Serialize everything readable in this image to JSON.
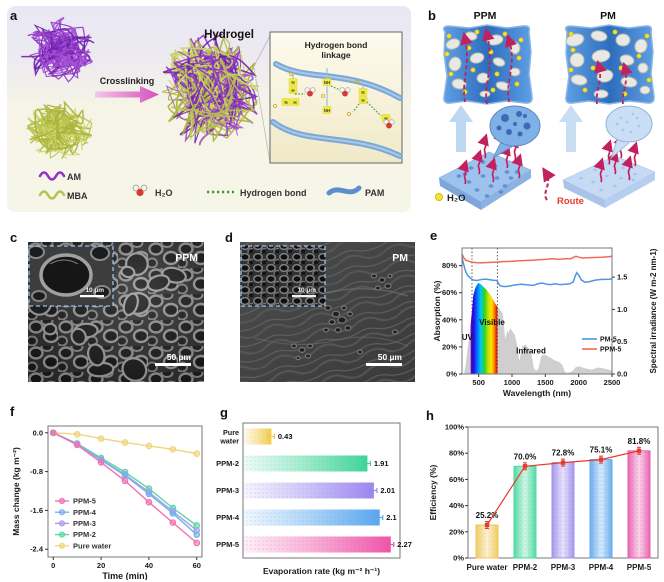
{
  "figure": {
    "panels": {
      "a": {
        "letter": "a",
        "hydrogel": "Hydrogel",
        "crosslinking": "Crosslinking",
        "inset_title_1": "Hydrogen bond",
        "inset_title_2": "linkage",
        "legend": {
          "am": "AM",
          "mba": "MBA",
          "h2o": "H₂O",
          "hbond": "Hydrogen bond",
          "pam": "PAM"
        }
      },
      "b": {
        "letter": "b",
        "left_title": "PPM",
        "right_title": "PM",
        "legend_water": "H₂O",
        "legend_route": "Route"
      },
      "c": {
        "letter": "c",
        "label": "PPM",
        "inset_scale": "10 µm",
        "scale": "50 µm"
      },
      "d": {
        "letter": "d",
        "label": "PM",
        "inset_scale": "10 µm",
        "scale": "50 µm"
      },
      "e": {
        "letter": "e"
      },
      "f": {
        "letter": "f"
      },
      "g": {
        "letter": "g"
      },
      "h": {
        "letter": "h"
      }
    }
  },
  "chart_data": [
    {
      "panel": "e",
      "type": "line",
      "xlabel": "Wavelength (nm)",
      "ylabel_left": "Absorption (%)",
      "ylabel_right": "Spectral irradiance (W m-2 nm-1)",
      "xlim": [
        250,
        2500
      ],
      "xticks": [
        500,
        1000,
        1500,
        2000,
        2500
      ],
      "ylim_left": [
        0,
        93
      ],
      "yticks_left": [
        {
          "v": 0,
          "label": "0%"
        },
        {
          "v": 20,
          "label": "20%"
        },
        {
          "v": 40,
          "label": "40%"
        },
        {
          "v": 60,
          "label": "60%"
        },
        {
          "v": 80,
          "label": "80%"
        }
      ],
      "ylim_right": [
        0,
        1.95
      ],
      "yticks_right": [
        {
          "v": 0,
          "label": "0.0"
        },
        {
          "v": 0.5,
          "label": "0.5"
        },
        {
          "v": 1,
          "label": "1.0"
        },
        {
          "v": 1.5,
          "label": "1.5"
        }
      ],
      "region_boundaries_nm": [
        400,
        780
      ],
      "region_labels": [
        {
          "text": "UV",
          "x": 330,
          "y": 25
        },
        {
          "text": "Visible",
          "x": 700,
          "y": 36
        },
        {
          "text": "Infrared",
          "x": 1285,
          "y": 15
        }
      ],
      "series": [
        {
          "name": "PM-5",
          "color": "#4f96e2",
          "x": [
            250,
            270,
            290,
            310,
            340,
            370,
            400,
            430,
            470,
            520,
            570,
            620,
            670,
            720,
            770,
            790,
            820,
            870,
            920,
            970,
            1020,
            1080,
            1140,
            1200,
            1260,
            1320,
            1380,
            1420,
            1470,
            1520,
            1580,
            1650,
            1720,
            1800,
            1870,
            1920,
            1945,
            1970,
            2000,
            2040,
            2090,
            2150,
            2250,
            2350,
            2450,
            2500
          ],
          "y": [
            86,
            82,
            78,
            75,
            72.5,
            71,
            69.8,
            69.2,
            69,
            69.5,
            70,
            70,
            69.6,
            69.2,
            69,
            67.5,
            65.2,
            64.6,
            64.6,
            65,
            65.5,
            66,
            66.2,
            66,
            65.6,
            65.4,
            66.4,
            67,
            67,
            66.2,
            66,
            66.6,
            66,
            66.2,
            66.6,
            68,
            72,
            74.8,
            73,
            69.5,
            67.8,
            68,
            69.3,
            69.8,
            70,
            70.2
          ]
        },
        {
          "name": "PPM-5",
          "color": "#ef6a5c",
          "x": [
            250,
            280,
            310,
            350,
            400,
            460,
            520,
            600,
            680,
            760,
            840,
            920,
            1000,
            1100,
            1200,
            1300,
            1400,
            1500,
            1600,
            1700,
            1800,
            1880,
            1930,
            1960,
            2000,
            2060,
            2140,
            2240,
            2340,
            2440,
            2500
          ],
          "y": [
            88.5,
            85.5,
            84,
            83.2,
            82.6,
            82.2,
            82,
            82.2,
            82.4,
            82.6,
            82.8,
            83,
            83.2,
            83.5,
            83.8,
            84,
            84.3,
            84.6,
            85,
            84.7,
            85,
            85.1,
            86.3,
            86.9,
            86.2,
            85.6,
            85.8,
            86,
            86.1,
            86.5,
            86.8
          ]
        }
      ],
      "solar_spectrum": {
        "name": "Solar spectrum",
        "color": "#cfcfcf",
        "x": [
          280,
          300,
          320,
          350,
          380,
          400,
          420,
          450,
          480,
          500,
          530,
          560,
          590,
          620,
          650,
          690,
          720,
          760,
          790,
          820,
          860,
          900,
          930,
          950,
          970,
          1000,
          1040,
          1080,
          1110,
          1130,
          1160,
          1200,
          1250,
          1290,
          1330,
          1360,
          1380,
          1400,
          1440,
          1480,
          1530,
          1580,
          1640,
          1700,
          1750,
          1790,
          1820,
          1870,
          1910,
          1950,
          2000,
          2060,
          2120,
          2200,
          2300,
          2400,
          2500
        ],
        "y": [
          0,
          0.1,
          0.28,
          0.52,
          0.78,
          0.97,
          1.22,
          1.33,
          1.39,
          1.41,
          1.39,
          1.36,
          1.33,
          1.3,
          1.26,
          1.2,
          1.14,
          1.07,
          1.03,
          1,
          0.93,
          0.54,
          0.68,
          0.63,
          0.71,
          0.67,
          0.61,
          0.44,
          0.2,
          0.31,
          0.44,
          0.45,
          0.4,
          0.31,
          0.09,
          0.05,
          0.06,
          0.1,
          0.28,
          0.3,
          0.28,
          0.25,
          0.21,
          0.19,
          0.15,
          0.04,
          0.02,
          0.03,
          0.05,
          0.1,
          0.12,
          0.1,
          0.08,
          0.07,
          0.1,
          0.08,
          0.05
        ]
      }
    },
    {
      "panel": "f",
      "type": "line",
      "xlabel": "Time (min)",
      "ylabel": "Mass change (kg m⁻²)",
      "x": [
        0,
        10,
        20,
        30,
        40,
        50,
        60
      ],
      "xticks": [
        0,
        20,
        40,
        60
      ],
      "ylim": [
        -2.56,
        0.14
      ],
      "yticks": [
        {
          "v": 0,
          "label": "0.0"
        },
        {
          "v": -0.8,
          "label": "-0.8"
        },
        {
          "v": -1.6,
          "label": "-1.6"
        },
        {
          "v": -2.4,
          "label": "-2.4"
        }
      ],
      "series": [
        {
          "name": "PPM-5",
          "color": "#f173b1",
          "y": [
            0,
            -0.25,
            -0.61,
            -0.99,
            -1.43,
            -1.85,
            -2.27
          ]
        },
        {
          "name": "PPM-4",
          "color": "#74b3ea",
          "y": [
            0,
            -0.24,
            -0.56,
            -0.88,
            -1.26,
            -1.66,
            -2.1
          ]
        },
        {
          "name": "PPM-3",
          "color": "#ab9ded",
          "y": [
            0,
            -0.23,
            -0.55,
            -0.86,
            -1.22,
            -1.62,
            -2.01
          ]
        },
        {
          "name": "PPM-2",
          "color": "#5dd7a4",
          "y": [
            0,
            -0.22,
            -0.52,
            -0.81,
            -1.15,
            -1.55,
            -1.91
          ]
        },
        {
          "name": "Pure water",
          "color": "#f1d57e",
          "y": [
            0,
            -0.03,
            -0.12,
            -0.2,
            -0.27,
            -0.34,
            -0.43
          ]
        }
      ]
    },
    {
      "panel": "g",
      "type": "bar-horizontal",
      "xlabel": "Evaporation rate (kg m⁻² h⁻¹)",
      "categories": [
        "Pure water",
        "PPM-2",
        "PPM-3",
        "PPM-4",
        "PPM-5"
      ],
      "values": [
        0.43,
        1.91,
        2.01,
        2.1,
        2.27
      ],
      "value_labels": [
        "0.43",
        "1.91",
        "2.01",
        "2.1",
        "2.27"
      ],
      "colors": [
        "#f2cb4e",
        "#3fd49a",
        "#9a86ef",
        "#58a6ee",
        "#ee55a8"
      ],
      "xlim": [
        0,
        2.42
      ]
    },
    {
      "panel": "h",
      "type": "bar",
      "ylabel": "Efficiency (%)",
      "categories": [
        "Pure water",
        "PPM-2",
        "PPM-3",
        "PPM-4",
        "PPM-5"
      ],
      "values": [
        25.2,
        70.0,
        72.8,
        75.1,
        81.8
      ],
      "value_labels": [
        "25.2%",
        "70.0%",
        "72.8%",
        "75.1%",
        "81.8%"
      ],
      "colors": [
        "#edc95a",
        "#4cd8a0",
        "#a392ec",
        "#64aaec",
        "#e85fae"
      ],
      "line_color": "#e8392f",
      "ylim": [
        0,
        100
      ],
      "yticks": [
        {
          "v": 0,
          "label": "0%"
        },
        {
          "v": 20,
          "label": "20%"
        },
        {
          "v": 40,
          "label": "40%"
        },
        {
          "v": 60,
          "label": "60%"
        },
        {
          "v": 80,
          "label": "80%"
        },
        {
          "v": 100,
          "label": "100%"
        }
      ]
    }
  ]
}
